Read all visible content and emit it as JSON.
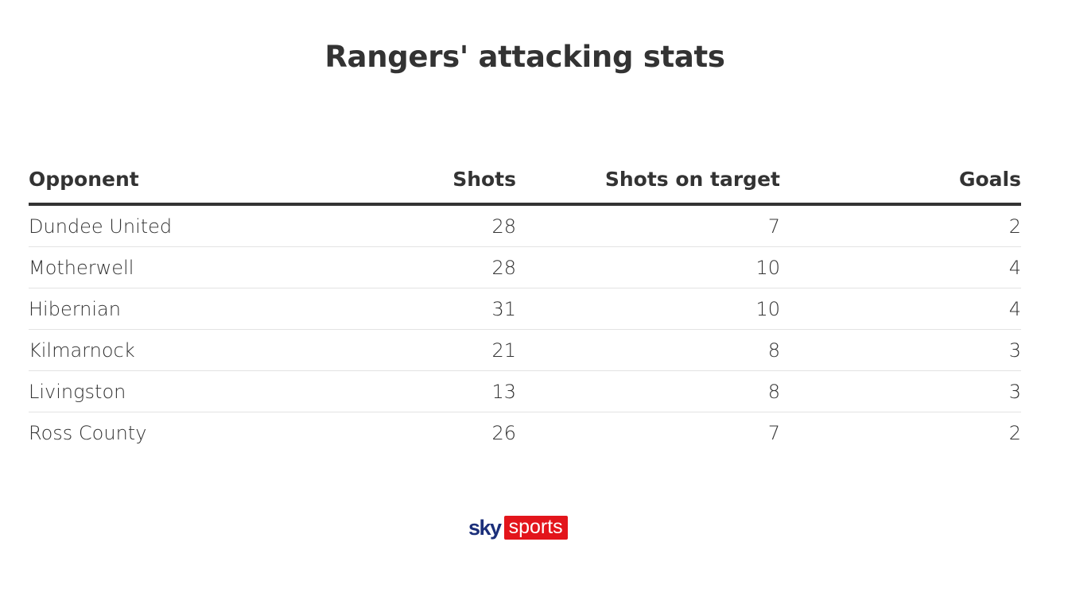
{
  "chart_data": {
    "type": "table",
    "title": "Rangers' attacking stats",
    "columns": [
      "Opponent",
      "Shots",
      "Shots on target",
      "Goals"
    ],
    "rows": [
      [
        "Dundee United",
        28,
        7,
        2
      ],
      [
        "Motherwell",
        28,
        10,
        4
      ],
      [
        "Hibernian",
        31,
        10,
        4
      ],
      [
        "Kilmarnock",
        21,
        8,
        3
      ],
      [
        "Livingston",
        13,
        8,
        3
      ],
      [
        "Ross County",
        26,
        7,
        2
      ]
    ]
  },
  "logo": {
    "sky": "sky",
    "sports": "sports",
    "colors": {
      "sky": "#1b2f7a",
      "sports_bg": "#e3151b"
    }
  }
}
